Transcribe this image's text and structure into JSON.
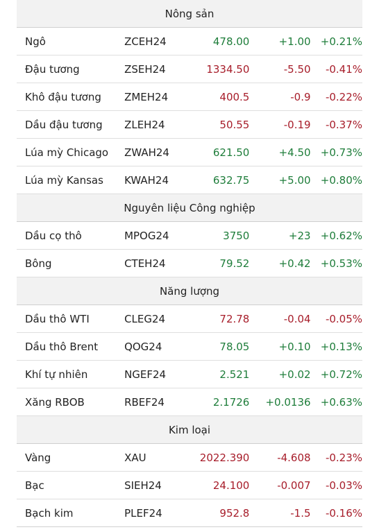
{
  "sections": [
    {
      "title": "Nông sản",
      "rows": [
        {
          "name": "Ngô",
          "symbol": "ZCEH24",
          "price": "478.00",
          "change": "+1.00",
          "pct": "+0.21%",
          "dir": "up"
        },
        {
          "name": "Đậu tương",
          "symbol": "ZSEH24",
          "price": "1334.50",
          "change": "-5.50",
          "pct": "-0.41%",
          "dir": "down"
        },
        {
          "name": "Khô đậu tương",
          "symbol": "ZMEH24",
          "price": "400.5",
          "change": "-0.9",
          "pct": "-0.22%",
          "dir": "down"
        },
        {
          "name": "Dầu đậu tương",
          "symbol": "ZLEH24",
          "price": "50.55",
          "change": "-0.19",
          "pct": "-0.37%",
          "dir": "down"
        },
        {
          "name": "Lúa mỳ Chicago",
          "symbol": "ZWAH24",
          "price": "621.50",
          "change": "+4.50",
          "pct": "+0.73%",
          "dir": "up"
        },
        {
          "name": "Lúa mỳ Kansas",
          "symbol": "KWAH24",
          "price": "632.75",
          "change": "+5.00",
          "pct": "+0.80%",
          "dir": "up"
        }
      ]
    },
    {
      "title": "Nguyên liệu Công nghiệp",
      "rows": [
        {
          "name": "Dầu cọ thô",
          "symbol": "MPOG24",
          "price": "3750",
          "change": "+23",
          "pct": "+0.62%",
          "dir": "up"
        },
        {
          "name": "Bông",
          "symbol": "CTEH24",
          "price": "79.52",
          "change": "+0.42",
          "pct": "+0.53%",
          "dir": "up"
        }
      ]
    },
    {
      "title": "Năng lượng",
      "rows": [
        {
          "name": "Dầu thô WTI",
          "symbol": "CLEG24",
          "price": "72.78",
          "change": "-0.04",
          "pct": "-0.05%",
          "dir": "down"
        },
        {
          "name": "Dầu thô Brent",
          "symbol": "QOG24",
          "price": "78.05",
          "change": "+0.10",
          "pct": "+0.13%",
          "dir": "up"
        },
        {
          "name": "Khí tự nhiên",
          "symbol": "NGEF24",
          "price": "2.521",
          "change": "+0.02",
          "pct": "+0.72%",
          "dir": "up"
        },
        {
          "name": "Xăng RBOB",
          "symbol": "RBEF24",
          "price": "2.1726",
          "change": "+0.0136",
          "pct": "+0.63%",
          "dir": "up"
        }
      ]
    },
    {
      "title": "Kim loại",
      "rows": [
        {
          "name": "Vàng",
          "symbol": "XAU",
          "price": "2022.390",
          "change": "-4.608",
          "pct": "-0.23%",
          "dir": "down"
        },
        {
          "name": "Bạc",
          "symbol": "SIEH24",
          "price": "24.100",
          "change": "-0.007",
          "pct": "-0.03%",
          "dir": "down"
        },
        {
          "name": "Bạch kim",
          "symbol": "PLEF24",
          "price": "952.8",
          "change": "-1.5",
          "pct": "-0.16%",
          "dir": "down"
        }
      ]
    }
  ],
  "colors": {
    "up": "#1e7d3a",
    "down": "#a71d2a",
    "header_bg": "#f2f2f2"
  }
}
